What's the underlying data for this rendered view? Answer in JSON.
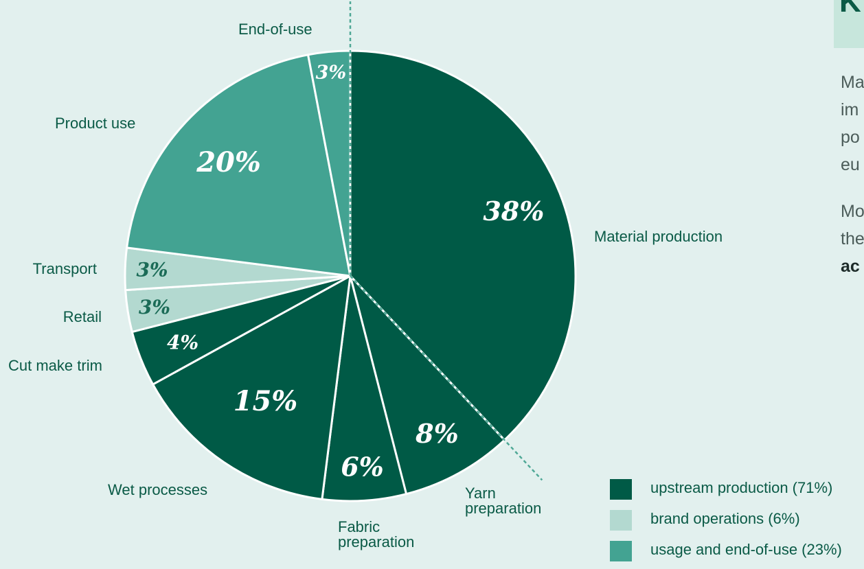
{
  "chart_data": {
    "type": "pie",
    "title": "",
    "slices": [
      {
        "label": "Material production",
        "value": 38,
        "display": "38%",
        "group": "upstream production"
      },
      {
        "label": "Yarn preparation",
        "value": 8,
        "display": "8%",
        "group": "upstream production"
      },
      {
        "label": "Fabric preparation",
        "value": 6,
        "display": "6%",
        "group": "upstream production"
      },
      {
        "label": "Wet processes",
        "value": 15,
        "display": "15%",
        "group": "upstream production"
      },
      {
        "label": "Cut make trim",
        "value": 4,
        "display": "4%",
        "group": "upstream production"
      },
      {
        "label": "Retail",
        "value": 3,
        "display": "3%",
        "group": "brand operations"
      },
      {
        "label": "Transport",
        "value": 3,
        "display": "3%",
        "group": "brand operations"
      },
      {
        "label": "Product use",
        "value": 20,
        "display": "20%",
        "group": "usage and end-of-use"
      },
      {
        "label": "End-of-use",
        "value": 3,
        "display": "3%",
        "group": "usage and end-of-use"
      }
    ],
    "legend": [
      {
        "label": "upstream production (71%)",
        "color": "#005a46"
      },
      {
        "label": "brand operations (6%)",
        "color": "#b3d9d0"
      },
      {
        "label": "usage and end-of-use (23%)",
        "color": "#43a392"
      }
    ],
    "group_colors": {
      "upstream production": "#005a46",
      "brand operations": "#b3d9d0",
      "usage and end-of-use": "#43a392"
    }
  },
  "side_panel": {
    "heading_fragment": "K",
    "lines": [
      "Ma",
      "im",
      "po",
      "eu",
      "Mo",
      "the",
      "ac"
    ]
  }
}
